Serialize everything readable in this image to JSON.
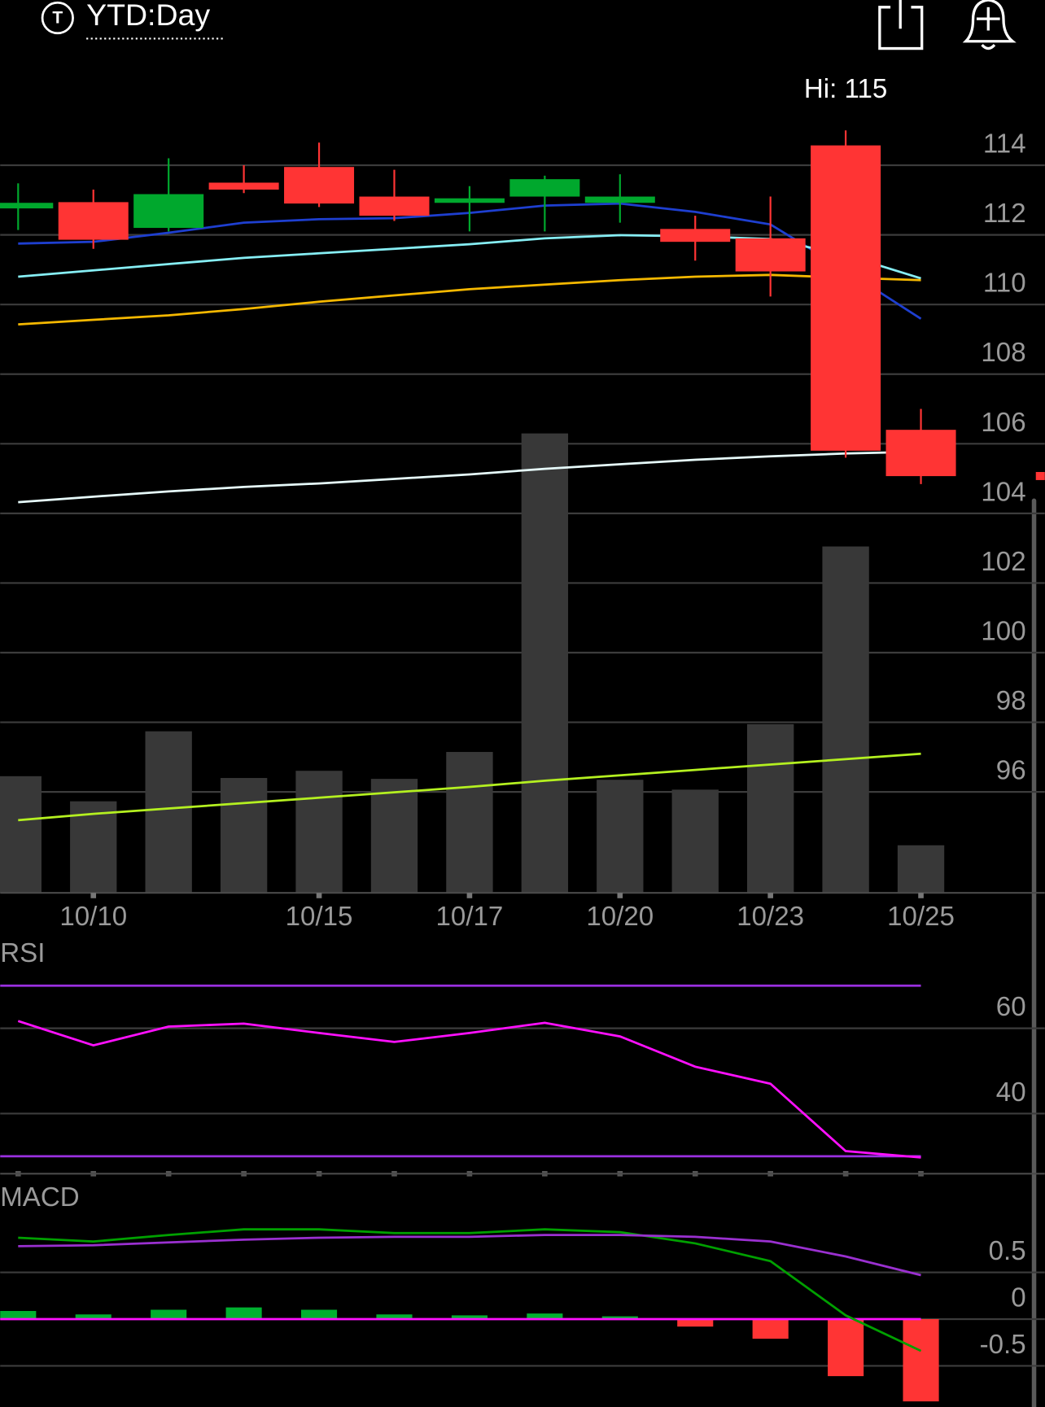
{
  "header": {
    "icon": "T",
    "title": "YTD:Day"
  },
  "chart_data": [
    {
      "type": "candlestick",
      "annotation": "Hi: 115",
      "categories": [
        null,
        "10/10",
        null,
        null,
        "10/15",
        null,
        "10/17",
        null,
        "10/20",
        null,
        "10/23",
        null,
        "10/25"
      ],
      "open": [
        112.76,
        112.94,
        112.2,
        113.5,
        113.95,
        113.1,
        112.92,
        113.1,
        112.92,
        112.17,
        111.9,
        114.57,
        106.4
      ],
      "high": [
        113.48,
        113.3,
        114.2,
        114.0,
        114.65,
        113.87,
        113.4,
        113.7,
        113.74,
        112.55,
        113.1,
        115.0,
        107.0
      ],
      "low": [
        112.14,
        111.6,
        112.1,
        113.2,
        112.8,
        112.4,
        112.1,
        112.1,
        112.35,
        111.26,
        110.23,
        105.6,
        104.84
      ],
      "close": [
        112.92,
        111.86,
        113.17,
        113.3,
        112.9,
        112.55,
        113.05,
        113.6,
        113.1,
        111.8,
        110.95,
        105.8,
        105.07
      ],
      "up_color": "#00a82d",
      "down_color": "#ff3434",
      "lines": [
        {
          "color": "#1e3fd0",
          "values": [
            111.75,
            111.8,
            112.06,
            112.35,
            112.45,
            112.48,
            112.63,
            112.84,
            112.9,
            112.66,
            112.3,
            110.98,
            109.59
          ]
        },
        {
          "color": "#86eef4",
          "values": [
            110.8,
            110.98,
            111.16,
            111.34,
            111.47,
            111.6,
            111.73,
            111.9,
            111.99,
            111.96,
            111.88,
            111.42,
            110.75
          ]
        },
        {
          "color": "#f5b800",
          "values": [
            109.43,
            109.56,
            109.69,
            109.87,
            110.08,
            110.26,
            110.44,
            110.57,
            110.7,
            110.8,
            110.85,
            110.77,
            110.7
          ]
        },
        {
          "color": "#e6fafa",
          "values": [
            104.32,
            104.48,
            104.63,
            104.76,
            104.86,
            104.99,
            105.12,
            105.28,
            105.41,
            105.54,
            105.64,
            105.72,
            105.77
          ]
        }
      ],
      "volume": {
        "color": "#383838",
        "axis": "y2",
        "values": [
          130,
          102,
          180,
          128,
          136,
          127,
          157,
          512,
          126,
          115,
          188,
          386,
          53
        ]
      },
      "volume_ma": {
        "color": "#b4f020",
        "axis": "y2",
        "values": [
          81,
          88,
          94,
          100,
          106,
          112,
          118,
          125,
          131,
          137,
          143,
          149,
          155
        ]
      },
      "ylim": [
        93.1,
        117.2
      ],
      "yticks": [
        96,
        98,
        100,
        102,
        104,
        106,
        108,
        110,
        112,
        114
      ],
      "y2lim": [
        0,
        935
      ],
      "grid": true
    },
    {
      "type": "line",
      "title": "RSI",
      "series": [
        {
          "color": "#ff10ff",
          "values": [
            61.7,
            56.0,
            60.4,
            61.1,
            58.9,
            56.8,
            58.9,
            61.3,
            58.1,
            51.0,
            47.0,
            31.2,
            29.7
          ]
        }
      ],
      "reference_lines": [
        {
          "value": 70,
          "color": "#9a30e0"
        },
        {
          "value": 30,
          "color": "#9a30e0"
        }
      ],
      "ylim": [
        25.9,
        80.2
      ],
      "yticks": [
        40,
        60
      ],
      "grid": true
    },
    {
      "type": "macd",
      "title": "MACD",
      "series": [
        {
          "color": "#00a000",
          "values": [
            0.87,
            0.83,
            0.9,
            0.96,
            0.96,
            0.92,
            0.92,
            0.96,
            0.93,
            0.81,
            0.62,
            0.04,
            -0.34
          ]
        },
        {
          "color": "#9a30d0",
          "values": [
            0.78,
            0.79,
            0.82,
            0.85,
            0.87,
            0.88,
            0.88,
            0.9,
            0.9,
            0.88,
            0.83,
            0.67,
            0.47
          ]
        }
      ],
      "histogram": {
        "up_color": "#00b030",
        "down_color": "#ff3434",
        "values": [
          0.087,
          0.05,
          0.1,
          0.125,
          0.1,
          0.05,
          0.04,
          0.06,
          0.03,
          -0.08,
          -0.21,
          -0.61,
          -0.88
        ]
      },
      "zero_line_color": "#ff10ff",
      "ylim": [
        -0.94,
        1.44
      ],
      "yticks": [
        -0.5,
        0,
        0.5
      ],
      "grid": true
    }
  ]
}
